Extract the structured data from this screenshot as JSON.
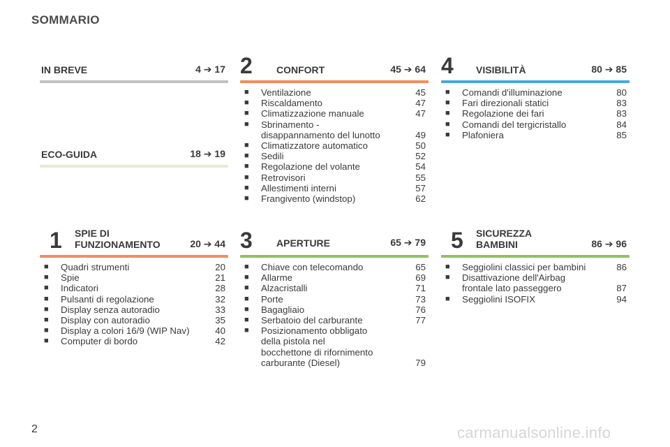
{
  "page_title": "SOMMARIO",
  "arrow": "➔",
  "colors": {
    "gray": "#c2c2c2",
    "beige": "#e9e9d6",
    "orange": "#f28c5e",
    "blue": "#49a7df",
    "green": "#8fc35c"
  },
  "in_breve": {
    "title": "IN BREVE",
    "from": "4",
    "to": "17"
  },
  "eco_guida": {
    "title": "ECO-GUIDA",
    "from": "18",
    "to": "19"
  },
  "confort": {
    "num": "2",
    "title": "CONFORT",
    "from": "45",
    "to": "64",
    "items": [
      {
        "text": "Ventilazione",
        "page": "45"
      },
      {
        "text": "Riscaldamento",
        "page": "47"
      },
      {
        "text": "Climatizzazione manuale",
        "page": "47"
      },
      {
        "text": "Sbrinamento -",
        "text2": "disappannamento del lunotto",
        "page": "49"
      },
      {
        "text": "Climatizzatore automatico",
        "page": "50"
      },
      {
        "text": "Sedili",
        "page": "52"
      },
      {
        "text": "Regolazione del volante",
        "page": "54"
      },
      {
        "text": "Retrovisori",
        "page": "55"
      },
      {
        "text": "Allestimenti interni",
        "page": "57"
      },
      {
        "text": "Frangivento (windstop)",
        "page": "62"
      }
    ]
  },
  "visibilita": {
    "num": "4",
    "title": "VISIBILITÀ",
    "from": "80",
    "to": "85",
    "items": [
      {
        "text": "Comandi d'illuminazione",
        "page": "80"
      },
      {
        "text": "Fari direzionali statici",
        "page": "83"
      },
      {
        "text": "Regolazione dei fari",
        "page": "83"
      },
      {
        "text": "Comandi del tergicristallo",
        "page": "84"
      },
      {
        "text": "Plafoniera",
        "page": "85"
      }
    ]
  },
  "spie": {
    "num": "1",
    "title_line1": "SPIE DI",
    "title_line2": "FUNZIONAMENTO",
    "from": "20",
    "to": "44",
    "items": [
      {
        "text": "Quadri strumenti",
        "page": "20"
      },
      {
        "text": "Spie",
        "page": "21"
      },
      {
        "text": "Indicatori",
        "page": "28"
      },
      {
        "text": "Pulsanti di regolazione",
        "page": "32"
      },
      {
        "text": "Display senza autoradio",
        "page": "33"
      },
      {
        "text": "Display con autoradio",
        "page": "35"
      },
      {
        "text": "Display a colori 16/9 (WIP Nav)",
        "page": "40"
      },
      {
        "text": "Computer di bordo",
        "page": "42"
      }
    ]
  },
  "aperture": {
    "num": "3",
    "title": "APERTURE",
    "from": "65",
    "to": "79",
    "items": [
      {
        "text": "Chiave con telecomando",
        "page": "65"
      },
      {
        "text": "Allarme",
        "page": "69"
      },
      {
        "text": "Alzacristalli",
        "page": "71"
      },
      {
        "text": "Porte",
        "page": "73"
      },
      {
        "text": "Bagagliaio",
        "page": "76"
      },
      {
        "text": "Serbatoio del carburante",
        "page": "77"
      },
      {
        "text": "Posizionamento obbligato",
        "text2": "della pistola nel",
        "text3": "bocchettone di rifornimento",
        "text4": "carburante (Diesel)",
        "page": "79"
      }
    ]
  },
  "sicurezza": {
    "num": "5",
    "title_line1": "SICUREZZA",
    "title_line2": "BAMBINI",
    "from": "86",
    "to": "96",
    "items": [
      {
        "text": "Seggiolini classici per bambini",
        "page": "86"
      },
      {
        "text": "Disattivazione dell'Airbag",
        "text2": "frontale lato passeggero",
        "page": "87"
      },
      {
        "text": "Seggiolini ISOFIX",
        "page": "94"
      }
    ]
  },
  "bullet": "■",
  "page_number": "2",
  "watermark": "carmanualsonline.info"
}
